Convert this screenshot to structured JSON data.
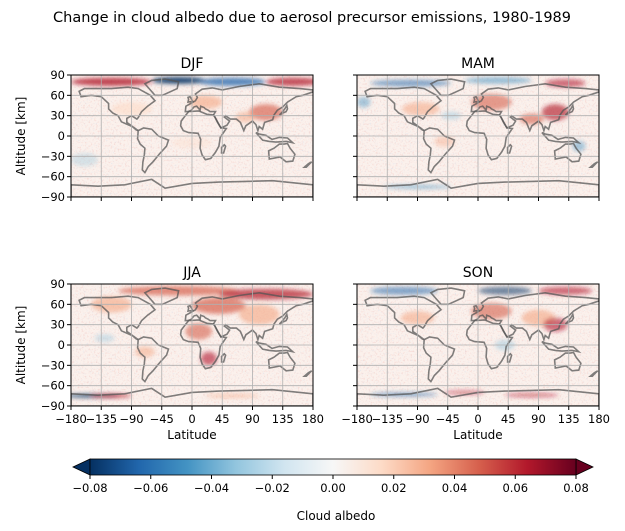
{
  "title": "Change in cloud albedo due to aerosol precursor emissions, 1980-1989",
  "chart_data": [
    {
      "type": "heatmap",
      "title": "DJF",
      "xlabel": "",
      "ylabel": "Altitude [km]",
      "xlim": [
        -180,
        180
      ],
      "ylim": [
        -90,
        90
      ],
      "xticks": [],
      "yticks": [
        "90",
        "60",
        "30",
        "0",
        "−30",
        "−60",
        "−90"
      ],
      "grid": true,
      "features": "Strong positive and negative anomalies along Arctic/Northern high latitudes; positive over East Asia and Europe; weak elsewhere."
    },
    {
      "type": "heatmap",
      "title": "MAM",
      "xlabel": "",
      "ylabel": "",
      "xlim": [
        -180,
        180
      ],
      "ylim": [
        -90,
        90
      ],
      "xticks": [],
      "yticks": [],
      "grid": true,
      "features": "Positive over Europe, South Asia and East Asia; negative patches in North Pacific and Southern Ocean."
    },
    {
      "type": "heatmap",
      "title": "JJA",
      "xlabel": "Latitude",
      "ylabel": "Altitude [km]",
      "xlim": [
        -180,
        180
      ],
      "ylim": [
        -90,
        90
      ],
      "xticks": [
        "−180",
        "−135",
        "−90",
        "−45",
        "0",
        "45",
        "90",
        "135",
        "180"
      ],
      "yticks": [
        "90",
        "60",
        "30",
        "0",
        "−30",
        "−60",
        "−90"
      ],
      "grid": true,
      "features": "Widespread positive over Northern Hemisphere, strongest over Siberia, Europe, Africa and Asia; strong anomalies near Antarctica."
    },
    {
      "type": "heatmap",
      "title": "SON",
      "xlabel": "Latitude",
      "ylabel": "",
      "xlim": [
        -180,
        180
      ],
      "ylim": [
        -90,
        90
      ],
      "xticks": [
        "−180",
        "−135",
        "−90",
        "−45",
        "0",
        "45",
        "90",
        "135",
        "180"
      ],
      "yticks": [],
      "grid": true,
      "features": "Positive over Northern Hemisphere continents and East Asia; mixed anomalies around Antarctica."
    }
  ],
  "colorbar": {
    "label": "Cloud albedo",
    "colormap": "RdBu_r",
    "range": [
      -0.08,
      0.08
    ],
    "extend": "both",
    "ticks": [
      "−0.08",
      "−0.06",
      "−0.04",
      "−0.02",
      "0.00",
      "0.02",
      "0.04",
      "0.06",
      "0.08"
    ],
    "colors": [
      "#053061",
      "#2166ac",
      "#4393c3",
      "#92c5de",
      "#d1e5f0",
      "#f7f7f7",
      "#fddbc7",
      "#f4a582",
      "#d6604d",
      "#b2182b",
      "#67001f"
    ]
  }
}
